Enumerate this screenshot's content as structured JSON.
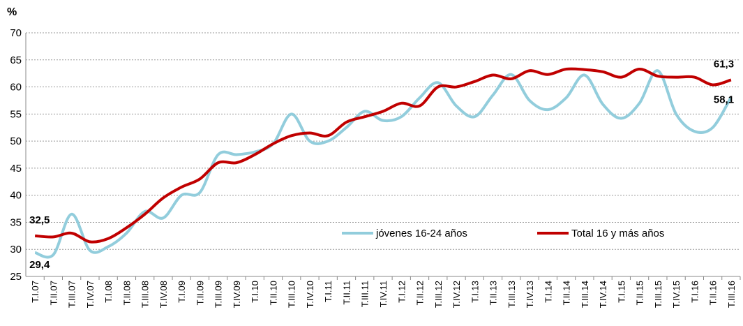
{
  "chart_data": {
    "type": "line",
    "ylabel": "%",
    "categories": [
      "T.I.07",
      "T.II.07",
      "T.III.07",
      "T.IV.07",
      "T.I.08",
      "T.II.08",
      "T.III.08",
      "T.IV.08",
      "T.I.09",
      "T.II.09",
      "T.III.09",
      "T.IV.09",
      "T.I.10",
      "T.II.10",
      "T.III.10",
      "T.IV.10",
      "T.I.11",
      "T.II.11",
      "T.III.11",
      "T.IV.11",
      "T.I.12",
      "T.II.12",
      "T.III.12",
      "T.IV.12",
      "T.I.13",
      "T.II.13",
      "T.III.13",
      "T.IV.13",
      "T.I.14",
      "T.II.14",
      "T.III.14",
      "T.IV.14",
      "T.I.15",
      "T.II.15",
      "T.III.15",
      "T.IV.15",
      "T.I.16",
      "T.II.16",
      "T.III.16"
    ],
    "series": [
      {
        "name": "jóvenes 16-24 años",
        "color": "#92cddc",
        "label_color": "#92cddc",
        "values": [
          29.4,
          29.0,
          36.5,
          29.8,
          30.5,
          33.0,
          37.0,
          35.8,
          40.0,
          40.5,
          47.5,
          47.5,
          48.0,
          49.5,
          55.0,
          50.0,
          50.0,
          52.5,
          55.5,
          53.8,
          54.5,
          58.0,
          60.8,
          56.5,
          54.5,
          58.5,
          62.3,
          57.5,
          55.8,
          58.0,
          62.2,
          56.8,
          54.2,
          57.0,
          63.0,
          55.0,
          51.8,
          52.5,
          58.1
        ],
        "value_labels": [
          "29,4",
          null,
          null,
          null,
          null,
          null,
          null,
          null,
          null,
          null,
          null,
          null,
          null,
          null,
          null,
          null,
          null,
          null,
          null,
          null,
          null,
          null,
          null,
          null,
          null,
          null,
          null,
          null,
          null,
          null,
          null,
          null,
          null,
          null,
          null,
          null,
          null,
          null,
          "58,1"
        ]
      },
      {
        "name": "Total 16 y más años",
        "color": "#c00000",
        "label_color": "#984807",
        "values": [
          32.5,
          32.3,
          33.0,
          31.4,
          32.0,
          34.0,
          36.5,
          39.5,
          41.5,
          43.0,
          46.0,
          46.0,
          47.5,
          49.5,
          51.0,
          51.5,
          51.0,
          53.5,
          54.5,
          55.5,
          57.0,
          56.5,
          60.0,
          60.0,
          61.0,
          62.2,
          61.5,
          63.0,
          62.3,
          63.3,
          63.2,
          62.8,
          61.8,
          63.3,
          62.0,
          61.8,
          61.8,
          60.4,
          61.3
        ],
        "value_labels": [
          "32,5",
          null,
          null,
          null,
          null,
          null,
          null,
          null,
          null,
          null,
          null,
          null,
          null,
          null,
          null,
          null,
          null,
          null,
          null,
          null,
          null,
          null,
          null,
          null,
          null,
          null,
          null,
          null,
          null,
          null,
          null,
          null,
          null,
          null,
          null,
          null,
          null,
          null,
          "61,3"
        ]
      }
    ],
    "ylim": [
      25,
      70
    ],
    "yticks": [
      25,
      30,
      35,
      40,
      45,
      50,
      55,
      60,
      65,
      70
    ],
    "grid": true,
    "legend": "lower right"
  }
}
